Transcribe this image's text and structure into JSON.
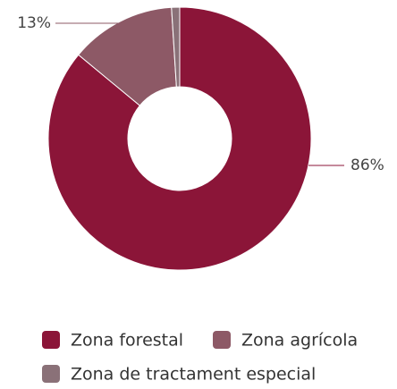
{
  "chart_data": {
    "type": "donut",
    "categories": [
      "Zona forestal",
      "Zona agrícola",
      "Zona de tractament especial"
    ],
    "values": [
      86,
      13,
      1
    ],
    "value_labels": [
      "86%",
      "13%",
      null
    ],
    "colors": [
      "#8b1538",
      "#8d5966",
      "#8a7178"
    ],
    "legend": "bottom"
  }
}
